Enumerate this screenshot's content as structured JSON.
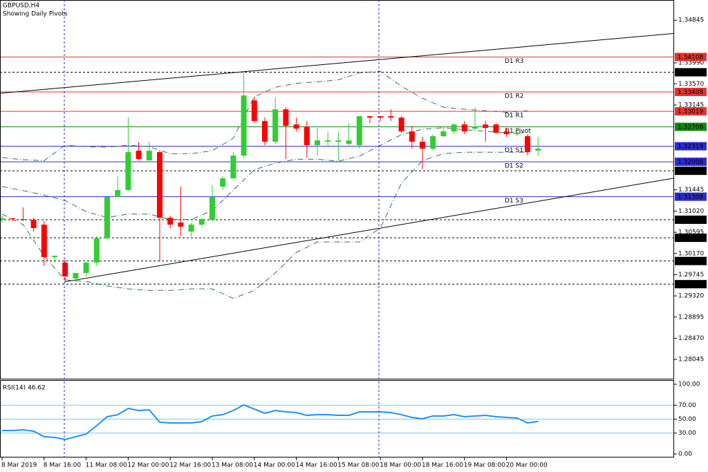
{
  "chart_data": [
    {
      "type": "candlestick",
      "title": "GBPUSD,H4",
      "subtitle": "Showing Daily Pivots",
      "categories": [
        "8 Mar 2019",
        null,
        null,
        null,
        "8 Mar 16:00",
        null,
        null,
        null,
        "11 Mar 08:00",
        null,
        null,
        null,
        "12 Mar 00:00",
        null,
        null,
        null,
        "12 Mar 16:00",
        null,
        null,
        null,
        "13 Mar 08:00",
        null,
        null,
        null,
        "14 Mar 00:00",
        null,
        null,
        null,
        "14 Mar 16:00",
        null,
        null,
        null,
        "15 Mar 08:00",
        null,
        null,
        null,
        "18 Mar 00:00",
        null,
        null,
        null,
        "18 Mar 16:00",
        null,
        null,
        null,
        "19 Mar 08:00",
        null,
        null,
        null,
        "20 Mar 00:00",
        null,
        null,
        null
      ],
      "open": [
        1.30845,
        1.30873,
        1.30859,
        1.30845,
        1.30748,
        1.30098,
        1.29987,
        1.29668,
        1.29779,
        1.29987,
        1.30471,
        1.31302,
        1.3144,
        1.32229,
        1.32035,
        1.32201,
        1.30886,
        1.3079,
        1.3061,
        1.30748,
        1.30845,
        1.31509,
        1.31675,
        1.32132,
        1.33239,
        1.32824,
        1.32409,
        1.33059,
        1.32755,
        1.32713,
        1.3234,
        1.32409,
        1.32409,
        1.32367,
        1.3234,
        1.32921,
        1.32921,
        1.32921,
        1.32893,
        1.32616,
        1.32409,
        1.3227,
        1.3252,
        1.32616,
        1.32755,
        1.32672,
        1.32755,
        1.32755,
        1.32616,
        1.32561,
        1.3252,
        1.32229
      ],
      "high": [
        1.30928,
        1.30886,
        1.31094,
        1.30886,
        1.30817,
        1.30125,
        1.30056,
        1.29779,
        1.30014,
        1.30513,
        1.31302,
        1.31717,
        1.32893,
        1.32409,
        1.32409,
        1.32229,
        1.30928,
        1.31509,
        1.3079,
        1.30886,
        1.31537,
        1.31717,
        1.32201,
        1.33793,
        1.33308,
        1.32893,
        1.33308,
        1.33101,
        1.32893,
        1.32824,
        1.32686,
        1.32616,
        1.32616,
        1.32782,
        1.32921,
        1.32921,
        1.32921,
        1.33059,
        1.32921,
        1.32727,
        1.32506,
        1.32561,
        1.32686,
        1.32782,
        1.32824,
        1.33101,
        1.32824,
        1.32782,
        1.32686,
        1.32616,
        1.32561,
        1.32506
      ],
      "low": [
        1.3079,
        1.30817,
        1.30817,
        1.3061,
        1.29918,
        1.29987,
        1.29599,
        1.29599,
        1.2971,
        1.29918,
        1.30471,
        1.31302,
        1.3144,
        1.32035,
        1.32035,
        1.30014,
        1.30679,
        1.30513,
        1.30513,
        1.30706,
        1.30817,
        1.3144,
        1.31675,
        1.3209,
        1.32782,
        1.3234,
        1.32367,
        1.32063,
        1.32616,
        1.3209,
        1.32132,
        1.3234,
        1.32035,
        1.3234,
        1.3227,
        1.32782,
        1.32824,
        1.32824,
        1.32589,
        1.3227,
        1.31855,
        1.32229,
        1.32506,
        1.32561,
        1.32561,
        1.32616,
        1.32409,
        1.32561,
        1.32506,
        1.3252,
        1.32132,
        1.32132
      ],
      "close": [
        1.30873,
        1.30859,
        1.30845,
        1.30679,
        1.30098,
        1.30125,
        1.2971,
        1.29779,
        1.29987,
        1.30471,
        1.31302,
        1.3144,
        1.32201,
        1.32063,
        1.32229,
        1.30886,
        1.30748,
        1.30706,
        1.30748,
        1.30859,
        1.31302,
        1.31675,
        1.32132,
        1.33336,
        1.32824,
        1.32409,
        1.33059,
        1.32727,
        1.32672,
        1.3234,
        1.32436,
        1.32436,
        1.32436,
        1.32436,
        1.32921,
        1.32893,
        1.32893,
        1.32893,
        1.32616,
        1.32409,
        1.3227,
        1.3252,
        1.32616,
        1.32755,
        1.32616,
        1.32713,
        1.32686,
        1.32589,
        1.32561,
        1.32589,
        1.32201,
        1.3227
      ],
      "up_color": "#32cd32",
      "down_color": "#ff0000",
      "ylim": [
        1.2766,
        1.3525
      ],
      "yticks": [
        1.34845,
        {
          "value": 1.3399,
          "label": "1.33990"
        },
        {
          "value": 1.3357,
          "label": "1.33570"
        },
        1.33145,
        1.31445,
        {
          "value": 1.3102,
          "label": "1.31020"
        },
        1.30595,
        {
          "value": 1.3017,
          "label": "1.30170"
        },
        1.29745,
        {
          "value": 1.2932,
          "label": "1.29320"
        },
        1.28895,
        {
          "value": 1.2847,
          "label": "1.28470"
        },
        1.28045
      ],
      "bands_x": [
        0,
        2,
        4,
        6,
        8,
        10,
        12,
        14,
        16,
        18,
        20,
        22,
        24,
        26,
        28,
        30,
        32,
        34,
        36,
        38,
        40,
        42,
        44,
        46,
        48,
        50
      ],
      "bands": [
        {
          "color": "#3d6b5c",
          "values": [
            1.3209,
            1.3205,
            1.3203,
            1.3234,
            1.3231,
            1.323,
            1.3234,
            1.3231,
            1.3217,
            1.3217,
            1.3223,
            1.3248,
            1.3331,
            1.335,
            1.3358,
            1.3361,
            1.3365,
            1.3379,
            1.3382,
            1.3352,
            1.3328,
            1.331,
            1.3306,
            1.3303,
            1.33,
            1.3303
          ]
        },
        {
          "color": "#3d6b5c",
          "values": [
            1.3151,
            1.3143,
            1.3134,
            1.3123,
            1.3101,
            1.3089,
            1.3096,
            1.3096,
            1.3085,
            1.3085,
            1.3103,
            1.3144,
            1.3185,
            1.3198,
            1.3206,
            1.3206,
            1.3202,
            1.3212,
            1.3234,
            1.3255,
            1.3266,
            1.3269,
            1.3265,
            1.3262,
            1.3259,
            1.3259
          ]
        },
        {
          "color": "#3d6b5c",
          "values": [
            1.3096,
            1.3075,
            1.3012,
            1.2964,
            1.2961,
            1.2952,
            1.2946,
            1.2943,
            1.2943,
            1.2946,
            1.2946,
            1.2927,
            1.2943,
            1.2978,
            1.3019,
            1.304,
            1.304,
            1.304,
            1.3068,
            1.3158,
            1.3203,
            1.3217,
            1.322,
            1.322,
            1.322,
            1.322
          ]
        }
      ],
      "trendlines": [
        {
          "x": [
            -0.2,
            63.95
          ],
          "y": [
            1.3338,
            1.3458
          ]
        },
        {
          "x": [
            5.92,
            63.95
          ],
          "y": [
            1.296,
            1.3168
          ]
        }
      ],
      "levels": [
        {
          "label": "D1 R3",
          "value": 1.34108,
          "color": "#e8312f"
        },
        {
          "label": "D1 R2",
          "value": 1.33408,
          "color": "#e8312f"
        },
        {
          "label": "D1 R1",
          "value": 1.33019,
          "color": "#e8312f"
        },
        {
          "label": "D1 Pivot",
          "value": 1.32708,
          "color": "#118811"
        },
        {
          "label": "D1 S1",
          "value": 1.32319,
          "color": "#2b2bd0"
        },
        {
          "label": "D1 S2",
          "value": 1.32008,
          "color": "#2b2bd0"
        },
        {
          "label": "D1 S3",
          "value": 1.31308,
          "color": "#2b2bd0"
        }
      ],
      "marked_prices": [
        1.33802,
        1.31827,
        1.30846,
        1.30484,
        1.30019,
        1.29555
      ]
    },
    {
      "type": "line",
      "label": "RSI(14) 46.62",
      "color": "#1e90ff",
      "values": [
        33.7,
        33.7,
        34.7,
        32.7,
        24.8,
        23.8,
        20.8,
        24.8,
        28.7,
        40.6,
        53.5,
        56.4,
        65.3,
        62.4,
        63.4,
        45.5,
        44.6,
        44.6,
        44.6,
        46.5,
        54.5,
        56.4,
        62.4,
        70.3,
        64.4,
        58.4,
        62.4,
        60.4,
        59.4,
        55.4,
        56.4,
        56.4,
        55.4,
        55.4,
        60.4,
        60.4,
        60.4,
        59.4,
        56.4,
        52.5,
        50.5,
        54.5,
        54.5,
        56.4,
        53.5,
        54.5,
        55.4,
        53.5,
        52.5,
        51.5,
        44.6,
        46.62
      ],
      "ylim": [
        -5,
        106
      ],
      "yticks": [
        {
          "value": 100,
          "label": "100.00"
        },
        {
          "value": 70,
          "label": "70.00"
        },
        {
          "value": 50,
          "label": "50.00"
        },
        {
          "value": 30,
          "label": "30.00"
        },
        {
          "value": 0,
          "label": "0.00"
        }
      ],
      "levels": [
        70,
        50,
        30
      ],
      "level_color": "#7ec8e3"
    }
  ]
}
